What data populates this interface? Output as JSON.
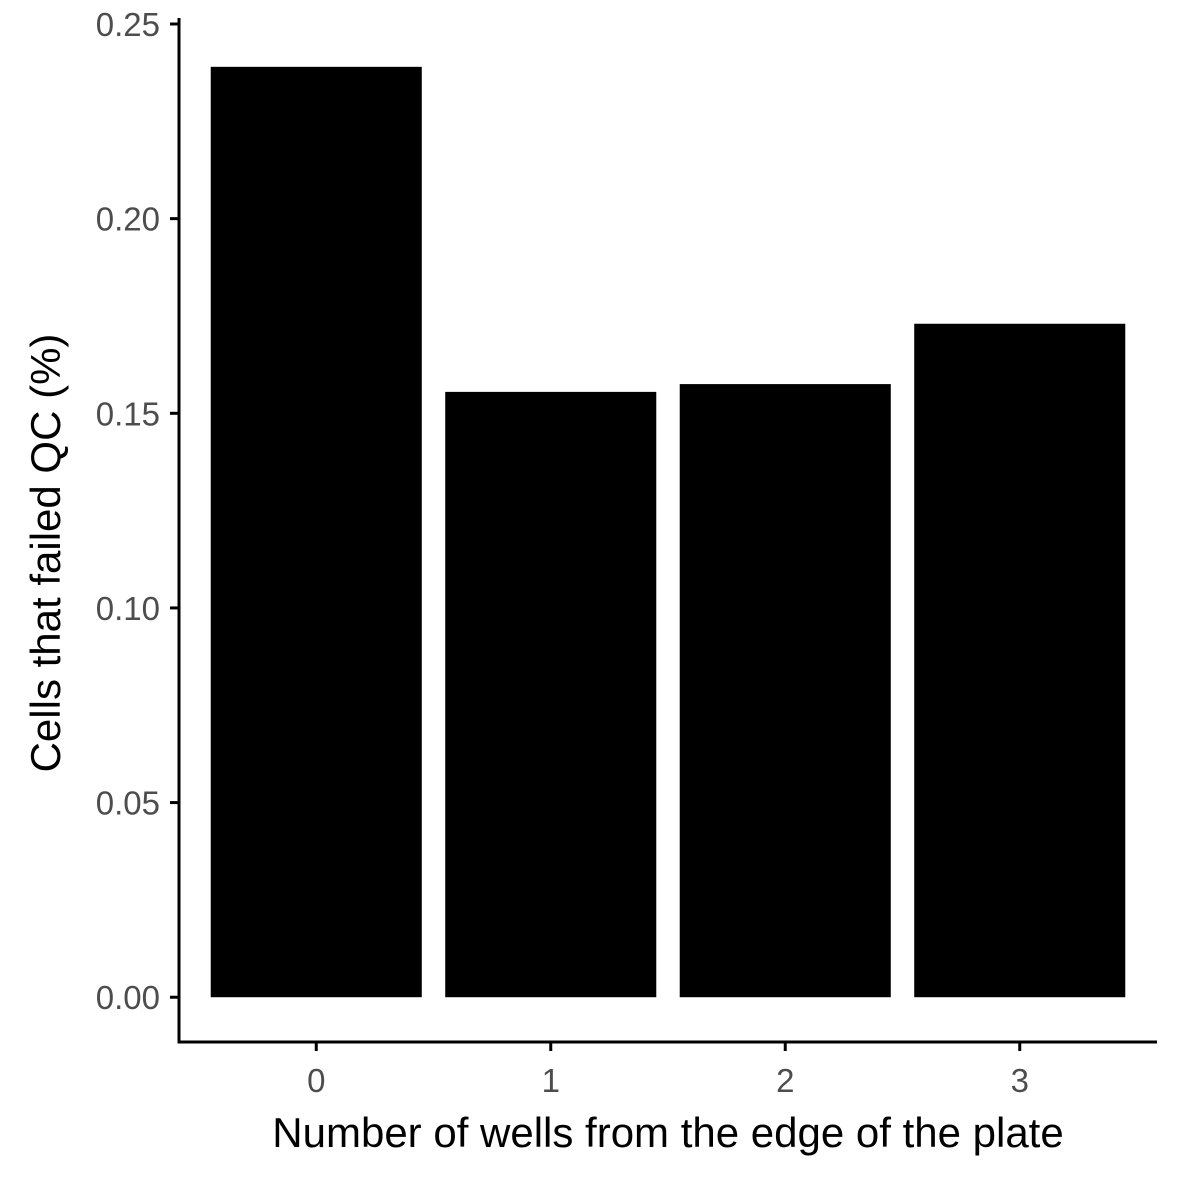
{
  "chart_data": {
    "type": "bar",
    "categories": [
      "0",
      "1",
      "2",
      "3"
    ],
    "values": [
      0.239,
      0.1555,
      0.1575,
      0.173
    ],
    "xlabel": "Number of wells from the edge of the plate",
    "ylabel": "Cells that failed QC (%)",
    "ylim": [
      -0.0115,
      0.25
    ],
    "yticks": [
      0,
      0.05,
      0.1,
      0.15,
      0.2,
      0.25
    ],
    "ytick_labels": [
      "0.00",
      "0.05",
      "0.10",
      "0.15",
      "0.20",
      "0.25"
    ],
    "grid": false,
    "legend": "none",
    "bar_color": "#000000",
    "axis_color": "#000000",
    "tick_label_color": "#4d4d4d"
  }
}
